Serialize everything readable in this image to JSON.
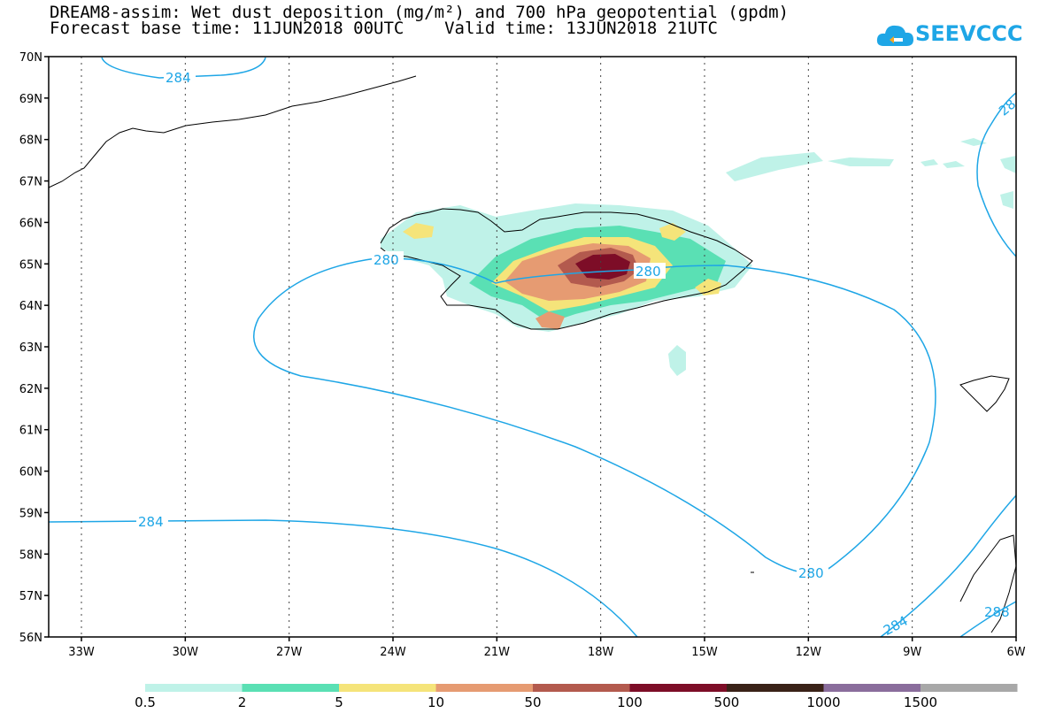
{
  "title": {
    "line1": "DREAM8-assim: Wet dust deposition (mg/m²) and 700 hPa geopotential (gpdm)",
    "line2": "Forecast base time: 11JUN2018 00UTC    Valid time: 13JUN2018 21UTC"
  },
  "logo": {
    "text": "SEEVCCC",
    "icon": "cloud-icon"
  },
  "axes": {
    "lat_labels": [
      "70N",
      "69N",
      "68N",
      "67N",
      "66N",
      "65N",
      "64N",
      "63N",
      "62N",
      "61N",
      "60N",
      "59N",
      "58N",
      "57N",
      "56N"
    ],
    "lon_labels": [
      "33W",
      "30W",
      "27W",
      "24W",
      "21W",
      "18W",
      "15W",
      "12W",
      "9W",
      "6W"
    ]
  },
  "contours": {
    "color": "#1ea6e6",
    "labels": [
      "284",
      "280",
      "280",
      "284",
      "280",
      "284",
      "288",
      "28"
    ]
  },
  "colorbar": {
    "colors": [
      "#bff2e8",
      "#5ae0b4",
      "#f5e47a",
      "#e69b72",
      "#b35a4e",
      "#7d0d27",
      "#3a2218",
      "#8a6d9c",
      "#a8a8a8"
    ],
    "labels": [
      "0.5",
      "2",
      "5",
      "10",
      "50",
      "100",
      "500",
      "1000",
      "1500"
    ]
  }
}
